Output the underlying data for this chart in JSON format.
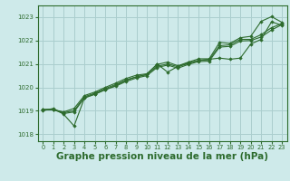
{
  "background_color": "#ceeaea",
  "grid_color": "#aacece",
  "line_color": "#2d6b2d",
  "marker_color": "#2d6b2d",
  "xlabel": "Graphe pression niveau de la mer (hPa)",
  "xlabel_fontsize": 7.5,
  "ylim": [
    1017.7,
    1023.5
  ],
  "xlim": [
    -0.5,
    23.5
  ],
  "yticks": [
    1018,
    1019,
    1020,
    1021,
    1022,
    1023
  ],
  "xticks": [
    0,
    1,
    2,
    3,
    4,
    5,
    6,
    7,
    8,
    9,
    10,
    11,
    12,
    13,
    14,
    15,
    16,
    17,
    18,
    19,
    20,
    21,
    22,
    23
  ],
  "series": [
    [
      1019.0,
      1019.1,
      1018.85,
      1018.35,
      1019.55,
      1019.72,
      1019.9,
      1020.08,
      1020.3,
      1020.45,
      1020.55,
      1021.0,
      1020.65,
      1020.9,
      1021.05,
      1021.15,
      1021.2,
      1021.25,
      1021.2,
      1021.25,
      1021.85,
      1022.05,
      1022.8,
      1022.65
    ],
    [
      1019.05,
      1019.05,
      1018.95,
      1019.1,
      1019.65,
      1019.8,
      1020.0,
      1020.18,
      1020.38,
      1020.52,
      1020.58,
      1020.98,
      1021.08,
      1020.92,
      1021.08,
      1021.22,
      1021.22,
      1021.92,
      1021.88,
      1022.12,
      1022.18,
      1022.82,
      1023.02,
      1022.78
    ],
    [
      1019.05,
      1019.05,
      1018.92,
      1019.0,
      1019.6,
      1019.75,
      1019.95,
      1020.12,
      1020.32,
      1020.45,
      1020.55,
      1020.9,
      1021.0,
      1020.88,
      1021.02,
      1021.15,
      1021.18,
      1021.78,
      1021.82,
      1022.05,
      1022.05,
      1022.25,
      1022.55,
      1022.72
    ],
    [
      1019.05,
      1019.05,
      1018.88,
      1018.95,
      1019.55,
      1019.7,
      1019.9,
      1020.05,
      1020.25,
      1020.4,
      1020.5,
      1020.85,
      1020.95,
      1020.82,
      1020.98,
      1021.1,
      1021.12,
      1021.72,
      1021.75,
      1021.98,
      1022.0,
      1022.15,
      1022.45,
      1022.68
    ]
  ]
}
